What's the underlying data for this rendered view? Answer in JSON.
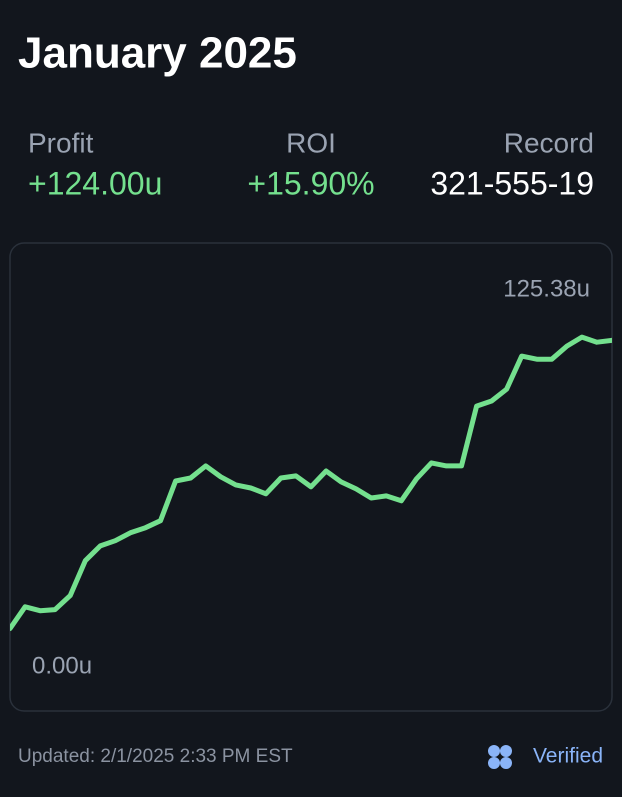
{
  "header": {
    "title": "January 2025"
  },
  "stats": [
    {
      "label": "Profit",
      "value": "+124.00u"
    },
    {
      "label": "ROI",
      "value": "+15.90%"
    },
    {
      "label": "Record",
      "value": "321-555-19"
    }
  ],
  "chart_data": {
    "type": "line",
    "color": "#74e08e",
    "values": [
      0,
      9.4,
      7.7,
      8.2,
      14.2,
      29.2,
      35.6,
      37.8,
      41.2,
      43.4,
      46.4,
      63.5,
      64.8,
      70.0,
      65.3,
      61.8,
      60.5,
      58.0,
      64.8,
      65.7,
      61.0,
      67.8,
      63.1,
      60.1,
      56.2,
      57.1,
      55.0,
      64.4,
      71.3,
      70.0,
      70.0,
      95.7,
      97.9,
      103.0,
      117.2,
      115.9,
      115.9,
      121.5,
      125.38,
      123.2,
      124.0
    ],
    "ylim": [
      -35,
      165
    ],
    "max_label": {
      "value": 125.38,
      "label": "125.38u"
    },
    "min_label": {
      "value": 0,
      "label": "0.00u"
    }
  },
  "footer": {
    "updated": "Updated: 2/1/2025 2:33 PM EST",
    "badge": "Verified"
  }
}
